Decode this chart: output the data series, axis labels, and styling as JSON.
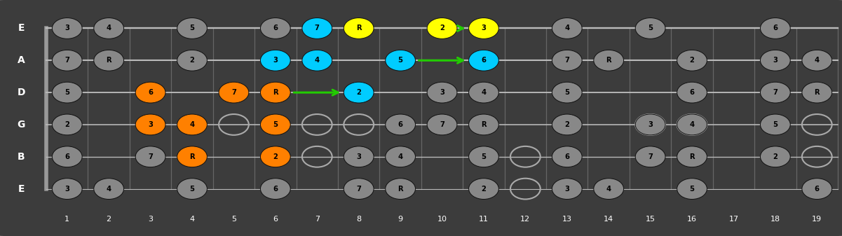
{
  "bg_color": "#333333",
  "string_labels": [
    "E",
    "B",
    "G",
    "D",
    "A",
    "E"
  ],
  "num_frets": 19,
  "fret_numbers": [
    1,
    2,
    3,
    4,
    5,
    6,
    7,
    8,
    9,
    10,
    11,
    12,
    13,
    14,
    15,
    16,
    17,
    18,
    19
  ],
  "notes": [
    {
      "s": 5,
      "f": 1,
      "label": "3",
      "color": "gray"
    },
    {
      "s": 5,
      "f": 2,
      "label": "4",
      "color": "gray"
    },
    {
      "s": 5,
      "f": 4,
      "label": "5",
      "color": "gray"
    },
    {
      "s": 5,
      "f": 6,
      "label": "6",
      "color": "gray"
    },
    {
      "s": 5,
      "f": 7,
      "label": "7",
      "color": "cyan"
    },
    {
      "s": 5,
      "f": 8,
      "label": "R",
      "color": "yellow"
    },
    {
      "s": 5,
      "f": 10,
      "label": "2",
      "color": "yellow"
    },
    {
      "s": 5,
      "f": 11,
      "label": "3",
      "color": "yellow"
    },
    {
      "s": 5,
      "f": 13,
      "label": "4",
      "color": "gray"
    },
    {
      "s": 5,
      "f": 15,
      "label": "5",
      "color": "gray"
    },
    {
      "s": 5,
      "f": 18,
      "label": "6",
      "color": "gray"
    },
    {
      "s": 4,
      "f": 1,
      "label": "7",
      "color": "gray"
    },
    {
      "s": 4,
      "f": 2,
      "label": "R",
      "color": "gray"
    },
    {
      "s": 4,
      "f": 4,
      "label": "2",
      "color": "gray"
    },
    {
      "s": 4,
      "f": 6,
      "label": "3",
      "color": "cyan"
    },
    {
      "s": 4,
      "f": 7,
      "label": "4",
      "color": "cyan"
    },
    {
      "s": 4,
      "f": 9,
      "label": "5",
      "color": "cyan"
    },
    {
      "s": 4,
      "f": 11,
      "label": "6",
      "color": "cyan"
    },
    {
      "s": 4,
      "f": 13,
      "label": "7",
      "color": "gray"
    },
    {
      "s": 4,
      "f": 14,
      "label": "R",
      "color": "gray"
    },
    {
      "s": 4,
      "f": 16,
      "label": "2",
      "color": "gray"
    },
    {
      "s": 4,
      "f": 18,
      "label": "3",
      "color": "gray"
    },
    {
      "s": 4,
      "f": 19,
      "label": "4",
      "color": "gray"
    },
    {
      "s": 3,
      "f": 1,
      "label": "5",
      "color": "gray"
    },
    {
      "s": 3,
      "f": 3,
      "label": "6",
      "color": "orange"
    },
    {
      "s": 3,
      "f": 5,
      "label": "7",
      "color": "orange"
    },
    {
      "s": 3,
      "f": 6,
      "label": "R",
      "color": "orange"
    },
    {
      "s": 3,
      "f": 8,
      "label": "2",
      "color": "cyan"
    },
    {
      "s": 3,
      "f": 10,
      "label": "3",
      "color": "gray"
    },
    {
      "s": 3,
      "f": 11,
      "label": "4",
      "color": "gray"
    },
    {
      "s": 3,
      "f": 13,
      "label": "5",
      "color": "gray"
    },
    {
      "s": 3,
      "f": 16,
      "label": "6",
      "color": "gray"
    },
    {
      "s": 3,
      "f": 18,
      "label": "7",
      "color": "gray"
    },
    {
      "s": 3,
      "f": 19,
      "label": "R",
      "color": "gray"
    },
    {
      "s": 2,
      "f": 1,
      "label": "2",
      "color": "gray"
    },
    {
      "s": 2,
      "f": 3,
      "label": "3",
      "color": "orange"
    },
    {
      "s": 2,
      "f": 4,
      "label": "4",
      "color": "orange"
    },
    {
      "s": 2,
      "f": 6,
      "label": "5",
      "color": "orange"
    },
    {
      "s": 2,
      "f": 9,
      "label": "6",
      "color": "gray"
    },
    {
      "s": 2,
      "f": 10,
      "label": "7",
      "color": "gray"
    },
    {
      "s": 2,
      "f": 11,
      "label": "R",
      "color": "gray"
    },
    {
      "s": 2,
      "f": 13,
      "label": "2",
      "color": "gray"
    },
    {
      "s": 2,
      "f": 15,
      "label": "3",
      "color": "gray"
    },
    {
      "s": 2,
      "f": 16,
      "label": "4",
      "color": "gray"
    },
    {
      "s": 2,
      "f": 18,
      "label": "5",
      "color": "gray"
    },
    {
      "s": 1,
      "f": 1,
      "label": "6",
      "color": "gray"
    },
    {
      "s": 1,
      "f": 3,
      "label": "7",
      "color": "gray"
    },
    {
      "s": 1,
      "f": 4,
      "label": "R",
      "color": "orange"
    },
    {
      "s": 1,
      "f": 6,
      "label": "2",
      "color": "orange"
    },
    {
      "s": 1,
      "f": 8,
      "label": "3",
      "color": "gray"
    },
    {
      "s": 1,
      "f": 9,
      "label": "4",
      "color": "gray"
    },
    {
      "s": 1,
      "f": 11,
      "label": "5",
      "color": "gray"
    },
    {
      "s": 1,
      "f": 13,
      "label": "6",
      "color": "gray"
    },
    {
      "s": 1,
      "f": 15,
      "label": "7",
      "color": "gray"
    },
    {
      "s": 1,
      "f": 16,
      "label": "R",
      "color": "gray"
    },
    {
      "s": 1,
      "f": 18,
      "label": "2",
      "color": "gray"
    },
    {
      "s": 0,
      "f": 1,
      "label": "3",
      "color": "gray"
    },
    {
      "s": 0,
      "f": 2,
      "label": "4",
      "color": "gray"
    },
    {
      "s": 0,
      "f": 4,
      "label": "5",
      "color": "gray"
    },
    {
      "s": 0,
      "f": 6,
      "label": "6",
      "color": "gray"
    },
    {
      "s": 0,
      "f": 8,
      "label": "7",
      "color": "gray"
    },
    {
      "s": 0,
      "f": 9,
      "label": "R",
      "color": "gray"
    },
    {
      "s": 0,
      "f": 11,
      "label": "2",
      "color": "gray"
    },
    {
      "s": 0,
      "f": 13,
      "label": "3",
      "color": "gray"
    },
    {
      "s": 0,
      "f": 14,
      "label": "4",
      "color": "gray"
    },
    {
      "s": 0,
      "f": 16,
      "label": "5",
      "color": "gray"
    },
    {
      "s": 0,
      "f": 19,
      "label": "6",
      "color": "gray"
    }
  ],
  "hollow": [
    {
      "s": 2,
      "f": 5
    },
    {
      "s": 2,
      "f": 7
    },
    {
      "s": 2,
      "f": 8
    },
    {
      "s": 1,
      "f": 7
    },
    {
      "s": 1,
      "f": 12
    },
    {
      "s": 0,
      "f": 12
    },
    {
      "s": 2,
      "f": 15
    },
    {
      "s": 2,
      "f": 16
    },
    {
      "s": 1,
      "f": 19
    },
    {
      "s": 2,
      "f": 19
    }
  ],
  "arrows": [
    {
      "fs": 3,
      "ff": 6,
      "ts": 3,
      "tf": 8
    },
    {
      "fs": 4,
      "ff": 9,
      "ts": 4,
      "tf": 11
    },
    {
      "fs": 5,
      "ff": 10,
      "ts": 5,
      "tf": 11
    }
  ],
  "color_map": {
    "gray": "#888888",
    "orange": "#FF8000",
    "cyan": "#00CCFF",
    "yellow": "#FFFF00"
  },
  "arrow_color": "#22CC00",
  "figsize": [
    12.01,
    3.37
  ],
  "dpi": 100
}
